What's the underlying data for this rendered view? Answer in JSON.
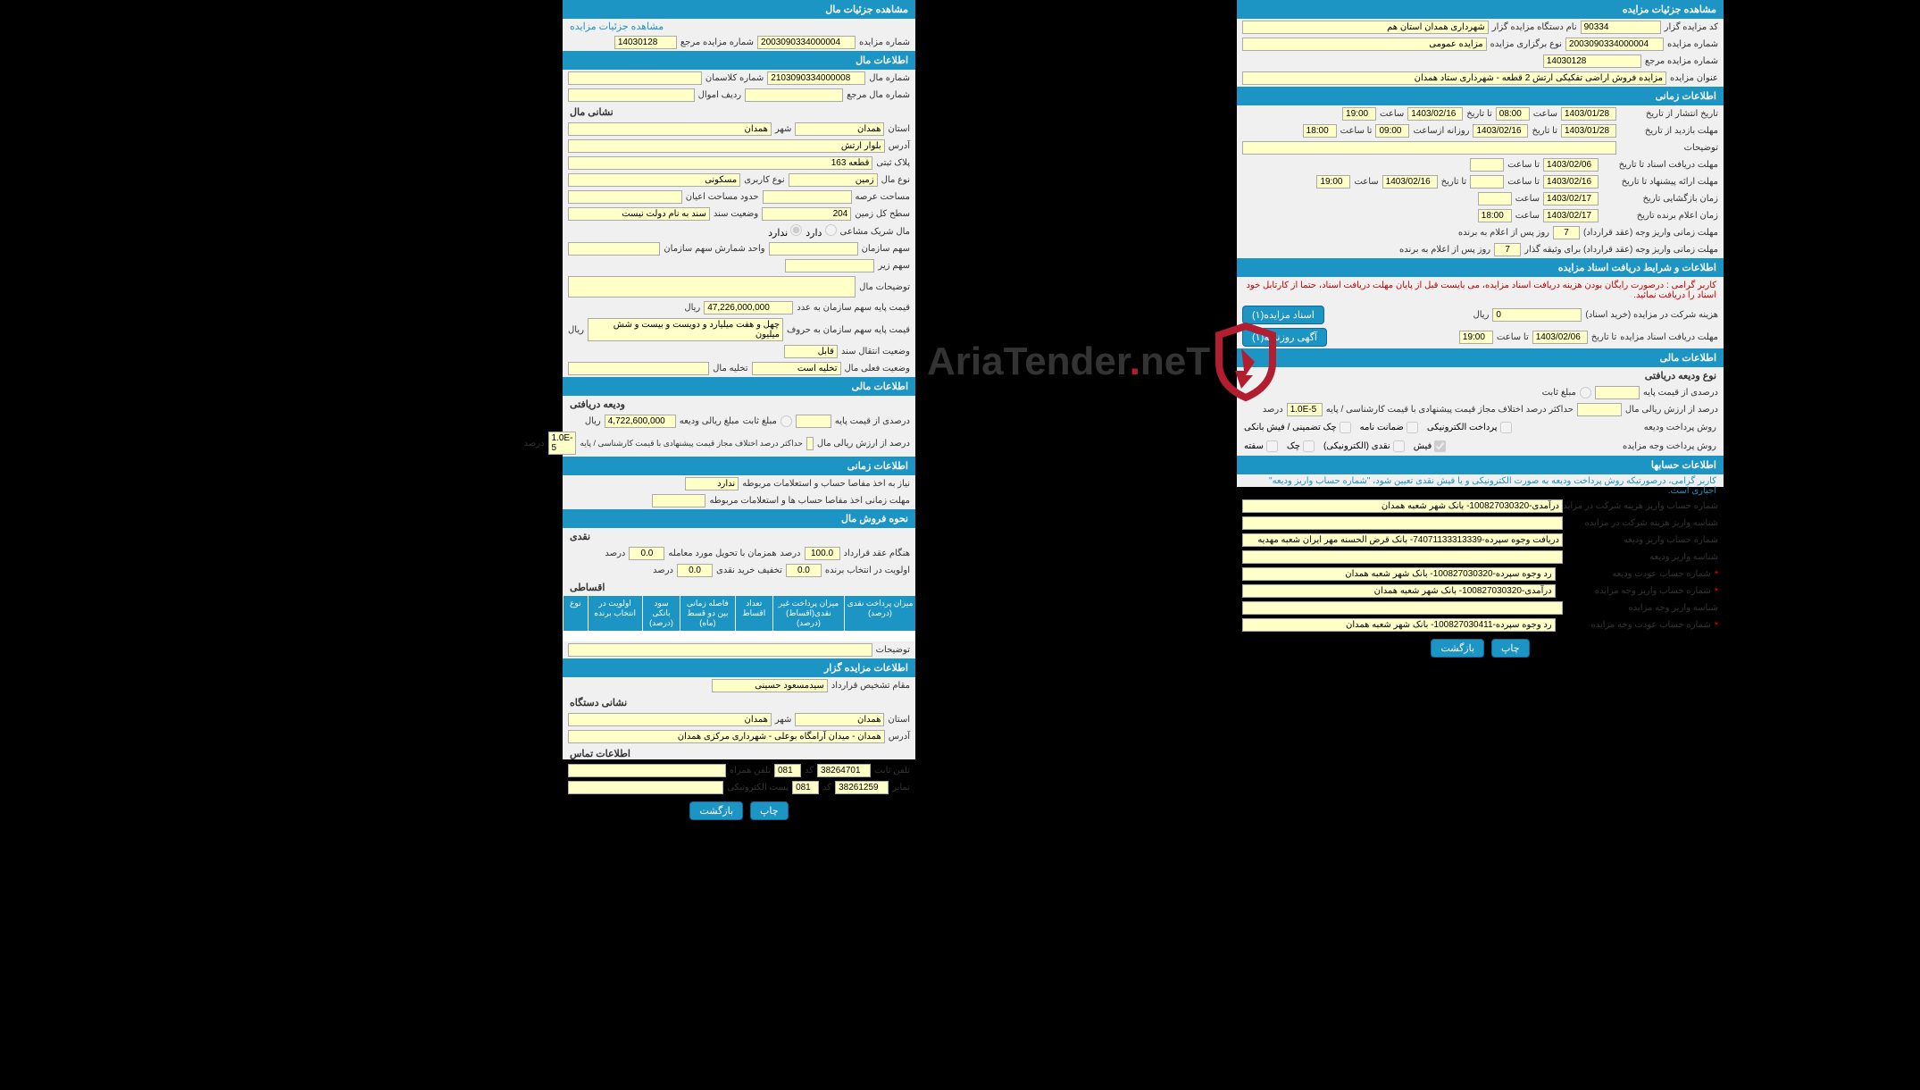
{
  "colors": {
    "header_bg": "#1c94c4",
    "field_bg": "#ffffc8",
    "page_bg": "#f0f0f0",
    "body_bg": "#000000",
    "warn_red": "#cc0000"
  },
  "watermark": {
    "text_prefix": "AriaTender",
    "text_dot": ".",
    "text_suffix": "neT",
    "shield_color": "#b21e2f"
  },
  "right_panel": {
    "h_details": "مشاهده جزئیات مزایده",
    "r1": {
      "auctioneer_code_lbl": "کد مزایده گزار",
      "auctioneer_code": "90334",
      "org_lbl": "نام دستگاه مزایده گزار",
      "org": "شهرداری همدان استان هم"
    },
    "r2": {
      "auction_no_lbl": "شماره مزایده",
      "auction_no": "2003090334000004",
      "type_lbl": "نوع برگزاری مزایده",
      "type": "مزایده عمومی"
    },
    "r3": {
      "ref_no_lbl": "شماره مزایده مرجع",
      "ref_no": "14030128"
    },
    "r4": {
      "title_lbl": "عنوان مزایده",
      "title": "مزایده فروش اراضی تفکیکی ارتش 2 قطعه - شهرداری ستاد همدان"
    },
    "h_time": "اطلاعات زمانی",
    "t1": {
      "lbl": "تاریخ انتشار  از تاریخ",
      "d1": "1403/01/28",
      "s1l": "ساعت",
      "s1": "08:00",
      "d2l": "تا تاریخ",
      "d2": "1403/02/16",
      "s2l": "ساعت",
      "s2": "19:00"
    },
    "t2": {
      "lbl": "مهلت بازدید  از تاریخ",
      "d1": "1403/01/28",
      "s1l": "روزانه ازساعت",
      "s1": "09:00",
      "d2l": "تا تاریخ",
      "d2": "1403/02/16",
      "s2l": "تا ساعت",
      "s2": "18:00"
    },
    "t_desc_lbl": "توضیحات",
    "t3": {
      "lbl": "مهلت دریافت اسناد  تا تاریخ",
      "d1": "1403/02/06",
      "s1l": "تا ساعت"
    },
    "t4": {
      "lbl": "مهلت ارائه پیشنهاد  تا تاریخ",
      "d1": "1403/02/16",
      "s1l": "تا ساعت",
      "d2l": "تا تاریخ",
      "d2": "1403/02/16",
      "s2l": "ساعت",
      "s2": "19:00"
    },
    "t5": {
      "lbl": "زمان بازگشایی       تاریخ",
      "d1": "1403/02/17",
      "s1l": "ساعت"
    },
    "t6": {
      "lbl": "زمان اعلام برنده    تاریخ",
      "d1": "1403/02/17",
      "s1l": "ساعت",
      "s1": "18:00"
    },
    "t7": {
      "lbl": "مهلت زمانی واریز وجه (عقد قرارداد)",
      "val": "7",
      "suffix": "روز پس از اعلام به برنده"
    },
    "t8": {
      "lbl": "مهلت زمانی واریز وجه (عقد قرارداد) برای وثیقه گذار",
      "val": "7",
      "suffix": "روز پس از اعلام به برنده"
    },
    "h_docs": "اطلاعات و شرایط دریافت اسناد مزایده",
    "docs_warn": "کاربر گرامی : درصورت رایگان بودن هزینه دریافت اسناد مزایده، می بایست قبل از پایان مهلت دریافت اسناد، حتما از کارتابل خود اسناد را دریافت نمائید.",
    "docs_fee": {
      "lbl": "هزینه شرکت در مزایده (خرید اسناد)",
      "val": "0",
      "unit": "ریال",
      "btn": "اسناد مزایده(۱)"
    },
    "docs_deadline": {
      "lbl": "مهلت دریافت اسناد مزایده",
      "d2l": "تا تاریخ",
      "d2": "1403/02/06",
      "s2l": "تا ساعت",
      "s2": "19:00",
      "btn": "آگهی روزنامه(۱)"
    },
    "h_fin": "اطلاعات مالی",
    "fin_sub": "نوع ودیعه دریافتی",
    "fin_pct_lbl": "درصدی از قیمت پایه",
    "fin_fixed_lbl": "مبلغ ثابت",
    "fin_dev_lbl": "درصد از ارزش ریالی مال",
    "fin_dev2_lbl": "حداکثر درصد اختلاف مجاز قیمت پیشنهادی با قیمت کارشناسی / پایه",
    "fin_dev2_val": "1.0E-5",
    "fin_dev2_unit": "درصد",
    "pay_dep_lbl": "روش پرداخت ودیعه",
    "pay_dep_opts": [
      "پرداخت الکترونیکی",
      "ضمانت نامه",
      "چک تضمینی /  فیش بانکی"
    ],
    "pay_auc_lbl": "روش پرداخت وجه مزایده",
    "pay_auc_opts": [
      "فیش",
      "نقدی (الکترونیکی)",
      "چک",
      "سفته"
    ],
    "h_acc": "اطلاعات حسابها",
    "acc_note": "کاربر گرامی، درصورتیکه روش پرداخت ودیعه به صورت الکترونیکی و یا فیش نقدی تعیین شود، \"شماره حساب واریز ودیعه\" اجباری است.",
    "acc": [
      {
        "lbl": "شماره حساب واریز هزینه شرکت در مزایده",
        "val": "درآمدی-100827030320- بانک شهر شعبه همدان"
      },
      {
        "lbl": "شناسه واریز هزینه شرکت در مزایده",
        "val": ""
      },
      {
        "lbl": "شماره حساب واریز ودیعه",
        "val": "دریافت وجوه سپرده-74071133313339- بانک قرض الحسنه مهر ایران شعبه مهدیه"
      },
      {
        "lbl": "شناسه واریز ودیعه",
        "val": ""
      },
      {
        "lbl": "شماره حساب عودت ودیعه",
        "val": "رد وجوه سپرده-100827030320- بانک شهر شعبه همدان",
        "star": true
      },
      {
        "lbl": "شماره حساب واریز وجه مزایده",
        "val": "درآمدی-100827030320- بانک شهر شعبه همدان",
        "star": true
      },
      {
        "lbl": "شناسه واریز وجه مزایده",
        "val": ""
      },
      {
        "lbl": "شماره حساب عودت وجه مزایده",
        "val": "رد وجوه سپرده-100827030411- بانک شهر شعبه همدان",
        "star": true
      }
    ],
    "btns": {
      "print": "چاپ",
      "back": "بازگشت"
    }
  },
  "left_panel": {
    "h_details": "مشاهده جزئیات مال",
    "details_link": "مشاهده جزئیات مزایده",
    "d1": {
      "auction_no_lbl": "شماره مزایده",
      "auction_no": "2003090334000004",
      "ref_lbl": "شماره مزایده مرجع",
      "ref": "14030128"
    },
    "h_prop": "اطلاعات مال",
    "p1": {
      "prop_no_lbl": "شماره مال",
      "prop_no": "2103090334000008",
      "class_lbl": "شماره کلاسمان"
    },
    "p2": {
      "ref_lbl": "شماره مال مرجع",
      "row_lbl": "ردیف اموال"
    },
    "sub_addr": "نشانی مال",
    "a1": {
      "prov_lbl": "استان",
      "prov": "همدان",
      "city_lbl": "شهر",
      "city": "همدان"
    },
    "a2": {
      "addr_lbl": "آدرس",
      "addr": "بلوار ارتش"
    },
    "a3": {
      "reg_lbl": "پلاک ثبتی",
      "reg": "قطعه 163"
    },
    "a4": {
      "type_lbl": "نوع مال",
      "type": "زمین",
      "use_lbl": "نوع کاربری",
      "use": "مسکونی"
    },
    "a5": {
      "area_lbl": "مساحت عرصه",
      "limit_lbl": "حدود مساحت اعیان"
    },
    "a6": {
      "land_lbl": "سطح کل زمین",
      "land": "204",
      "status_lbl": "وضعیت سند",
      "status": "سند به نام دولت نیست"
    },
    "a7": {
      "share_lbl": "مال شریک مشاعی",
      "o1": "دارد",
      "o2": "ندارد"
    },
    "a8": {
      "org_lbl": "سهم سازمان",
      "count_lbl": "واحد شمارش سهم سازمان"
    },
    "a9": {
      "sub_lbl": "سهم زیر"
    },
    "a10": {
      "desc_lbl": "توضیحات مال"
    },
    "a11": {
      "lbl": "قیمت پایه سهم سازمان به عدد",
      "val": "47,226,000,000",
      "unit": "ریال"
    },
    "a12": {
      "lbl": "قیمت پایه سهم سازمان به حروف",
      "val": "چهل و هفت میلیارد و دویست و بیست و شش میلیون",
      "unit": "ریال"
    },
    "a13": {
      "lbl": "وضعیت انتقال سند",
      "val": "قابل"
    },
    "a14": {
      "lbl": "وضعیت فعلی مال",
      "val": "تخلیه است",
      "vac_lbl": "تخلیه مال"
    },
    "h_fin": "اطلاعات مالی",
    "fin_sub": "ودیعه دریافتی",
    "f1": {
      "lbl": "درصدی از قیمت پایه",
      "fix_lbl": "مبلغ ثابت",
      "amt_lbl": "مبلغ ریالی ودیعه",
      "amt": "4,722,600,000",
      "unit": "ریال"
    },
    "f2": {
      "lbl": "درصد از ارزش ریالی مال",
      "dev_lbl": "حداکثر درصد اختلاف مجاز قیمت پیشنهادی با قیمت کارشناسی / پایه",
      "dev": "1.0E-5",
      "unit": "درصد"
    },
    "h_time": "اطلاعات زمانی",
    "tm1": {
      "lbl": "نیاز به اخذ مفاصا حساب و استعلامات مربوطه",
      "val": "ندارد"
    },
    "tm2": {
      "lbl": "مهلت زمانی اخذ مفاصا حساب ها و استعلامات مربوطه"
    },
    "h_sale": "نحوه فروش مال",
    "sub_cash": "نقدی",
    "s1": {
      "lbl": "هنگام عقد قرارداد",
      "val": "100.0",
      "unit": "درصد",
      "lbl2": "همزمان با تحویل مورد معامله",
      "val2": "0.0",
      "unit2": "درصد"
    },
    "s2": {
      "lbl": "اولویت در انتخاب برنده",
      "val": "0.0",
      "lbl2": "تخفیف خرید نقدی",
      "val2": "0.0",
      "unit": "درصد"
    },
    "sub_inst": "اقساطی",
    "tbl_hdrs": [
      "میزان پرداخت نقدی (درصد)",
      "میزان پرداخت غیر نقدی(اقساط) (درصد)",
      "تعداد اقساط",
      "فاصله زمانی بین دو قسط (ماه)",
      "سود بانکی (درصد)",
      "اولویت در انتخاب برنده",
      "نوع"
    ],
    "tbl_desc_lbl": "توضیحات",
    "h_org": "اطلاعات مزایده گزار",
    "o1": {
      "lbl": "مقام تشخیص قرارداد",
      "val": "سیدمسعود حسینی"
    },
    "sub_org": "نشانی دستگاه",
    "o2": {
      "prov_lbl": "استان",
      "prov": "همدان",
      "city_lbl": "شهر",
      "city": "همدان"
    },
    "o3": {
      "addr_lbl": "آدرس",
      "addr": "همدان - میدان آرامگاه بوعلی - شهرداری مرکزی همدان"
    },
    "sub_contact": "اطلاعات تماس",
    "c1": {
      "lbl": "تلفن ثابت",
      "val": "38264701",
      "code_lbl": "کد",
      "code": "081",
      "mob_lbl": "تلفن همراه"
    },
    "c2": {
      "lbl": "نمابر",
      "val": "38261259",
      "code_lbl": "کد",
      "code": "081",
      "email_lbl": "پست الکترونیکی"
    },
    "btns": {
      "print": "چاپ",
      "back": "بازگشت"
    }
  }
}
